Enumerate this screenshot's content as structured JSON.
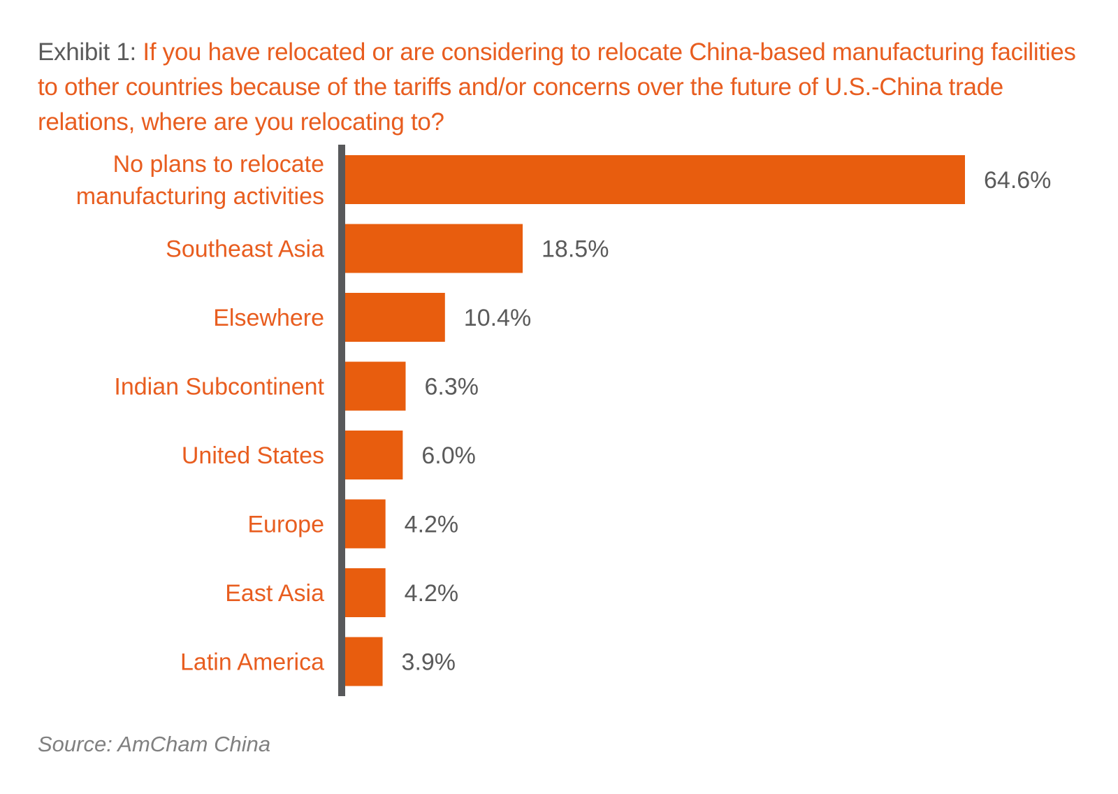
{
  "title": {
    "prefix": "Exhibit 1:",
    "question": "If you have relocated or are considering to relocate China-based manufacturing facilities to other countries because of the tariffs and/or concerns over the future of U.S.-China trade relations, where are you relocating to?"
  },
  "source": "Source: AmCham China",
  "colors": {
    "bar": "#e85d0e",
    "category_label": "#e85d1f",
    "value_label": "#5a5a5a",
    "axis": "#58595b"
  },
  "chart_data": {
    "type": "bar",
    "orientation": "horizontal",
    "title": "If you have relocated or are considering to relocate China-based manufacturing facilities to other countries because of the tariffs and/or concerns over the future of U.S.-China trade relations, where are you relocating to?",
    "categories": [
      [
        "No plans to relocate",
        "manufacturing activities"
      ],
      [
        "Southeast Asia"
      ],
      [
        "Elsewhere"
      ],
      [
        "Indian Subcontinent"
      ],
      [
        "United States"
      ],
      [
        "Europe"
      ],
      [
        "East Asia"
      ],
      [
        "Latin America"
      ]
    ],
    "values": [
      64.6,
      18.5,
      10.4,
      6.3,
      6.0,
      4.2,
      4.2,
      3.9
    ],
    "value_labels": [
      "64.6%",
      "18.5%",
      "10.4%",
      "6.3%",
      "6.0%",
      "4.2%",
      "4.2%",
      "3.9%"
    ],
    "unit": "%",
    "xlim": [
      0,
      64.6
    ],
    "grid": false,
    "legend": "none"
  }
}
